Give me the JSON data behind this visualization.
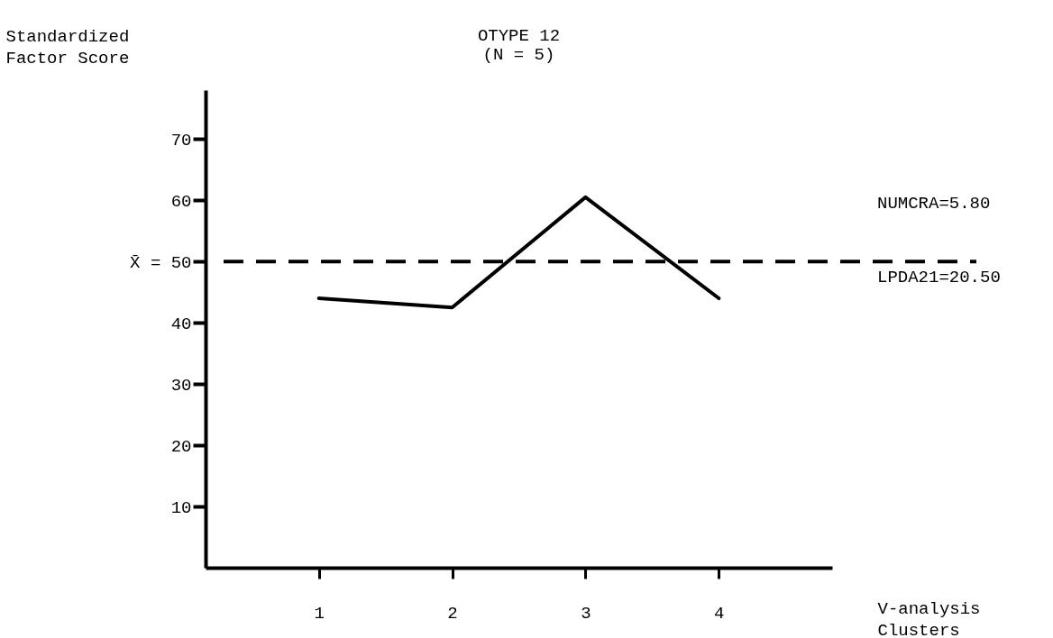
{
  "chart_data": {
    "type": "line",
    "title": "OTYPE 12",
    "subtitle": "(N = 5)",
    "xlabel": "V-analysis Clusters",
    "ylabel": "Standardized Factor Score",
    "categories": [
      "1",
      "2",
      "3",
      "4"
    ],
    "series": [
      {
        "color": "#000000",
        "values": [
          44,
          42.5,
          60.5,
          44
        ]
      }
    ],
    "ylim": [
      0,
      78
    ],
    "yticks": [
      10,
      20,
      30,
      40,
      {
        "value": 50,
        "label": "X̄ = 50"
      },
      60,
      70
    ],
    "ref_lines": [
      {
        "axis": "y",
        "value": 50,
        "line_style": "dashed",
        "color": "#000000"
      }
    ],
    "annotations": [
      "NUMCRA=5.80",
      "LPDA21=20.50"
    ],
    "line_style": "solid"
  }
}
